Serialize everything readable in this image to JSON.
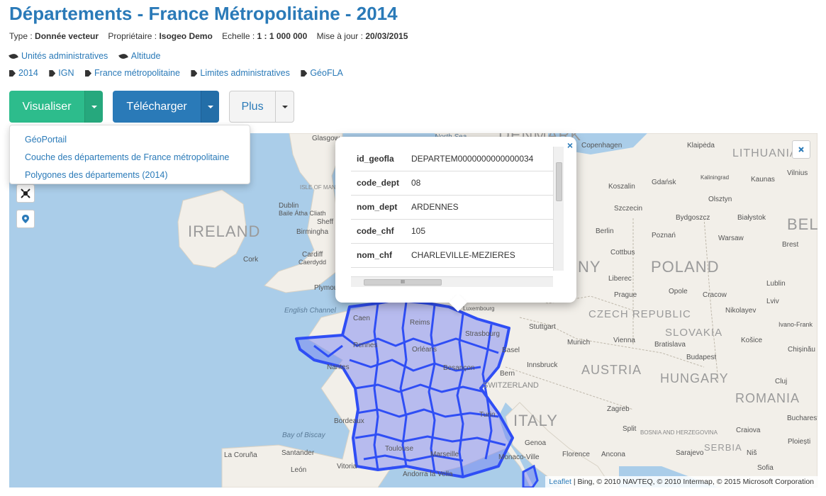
{
  "title": "Départements - France Métropolitaine - 2014",
  "meta": {
    "type_label": "Type :",
    "type_value": "Donnée vecteur",
    "owner_label": "Propriétaire :",
    "owner_value": "Isogeo Demo",
    "scale_label": "Echelle :",
    "scale_value": "1 : 1 000 000",
    "update_label": "Mise à jour :",
    "update_value": "20/03/2015"
  },
  "themes": [
    "Unités administratives",
    "Altitude"
  ],
  "tags": [
    "2014",
    "IGN",
    "France métropolitaine",
    "Limites administratives",
    "GéoFLA"
  ],
  "buttons": {
    "visualize": "Visualiser",
    "download": "Télécharger",
    "more": "Plus"
  },
  "dropdown": [
    "GéoPortail",
    "Couche des départements de France métropolitaine",
    "Polygones des départements (2014)"
  ],
  "popup": {
    "rows": [
      {
        "key": "id_geofla",
        "value": "DEPARTEM0000000000000034"
      },
      {
        "key": "code_dept",
        "value": "08"
      },
      {
        "key": "nom_dept",
        "value": "ARDENNES"
      },
      {
        "key": "code_chf",
        "value": "105"
      },
      {
        "key": "nom_chf",
        "value": "CHARLEVILLE-MEZIERES"
      }
    ],
    "close": "×",
    "scroll_grip": "III"
  },
  "map": {
    "countries": [
      "IRELAND",
      "POLAND",
      "CZECH REPUBLIC",
      "SLOVAKIA",
      "AUSTRIA",
      "HUNGARY",
      "ITALY",
      "ROMANIA",
      "LITHUANIA",
      "SERBIA",
      "BELA",
      "DENMARK",
      "NY"
    ],
    "cities": [
      "Glasgow",
      "Dublin",
      "Baile Átha Cliath",
      "Sheff",
      "Birmingha",
      "Cardiff",
      "Caerdydd",
      "Cork",
      "Plymou",
      "Copenhagen",
      "Klaipėda",
      "Vilnius",
      "Kaunas",
      "Gdańsk",
      "Koszalin",
      "Olsztyn",
      "Szczecin",
      "Bydgoszcz",
      "Białystok",
      "Berlin",
      "Poznań",
      "Warsaw",
      "Brest",
      "Cottbus",
      "Liberec",
      "Prague",
      "Opole",
      "Cracow",
      "Lublin",
      "Lviv",
      "Nikolayev",
      "Ivano-Frank",
      "Stuttgart",
      "Munich",
      "Vienna",
      "Bratislava",
      "Košice",
      "Budapest",
      "Basel",
      "Bern",
      "Innsbruck",
      "Zagreb",
      "Genoa",
      "Turin",
      "Florence",
      "Ancona",
      "Bordeaux",
      "La Coruña",
      "Santander",
      "Vitoria",
      "León",
      "Andorra la Vella",
      "Monaco-Ville",
      "Sofia",
      "Bucharest",
      "Craiova",
      "Niš",
      "Split",
      "Sarajevo",
      "Luxembourg",
      "Strasbourg",
      "Reims",
      "Rennes",
      "Nantes",
      "Orléans",
      "Besançon",
      "Toulouse",
      "Marseille",
      "Caen",
      "Kaliningrad",
      "SWITZERLAND",
      "BOSNIA AND HERZEGOVINA",
      "ISLE OF MAN (U.K.)",
      "Cluj",
      "Chișinău",
      "Ploiești"
    ],
    "seas": [
      "English Channel",
      "Bay of Biscay",
      "North Sea"
    ]
  },
  "attribution": {
    "leaflet": "Leaflet",
    "text": "| Bing, © 2010 NAVTEQ, © 2010 Intermap, © 2015 Microsoft Corporation"
  },
  "colors": {
    "primary": "#2a7ab8",
    "success": "#2dbc8c",
    "sea": "#aacde9",
    "land": "#f2efe9",
    "dept": "#2f4ef5"
  }
}
